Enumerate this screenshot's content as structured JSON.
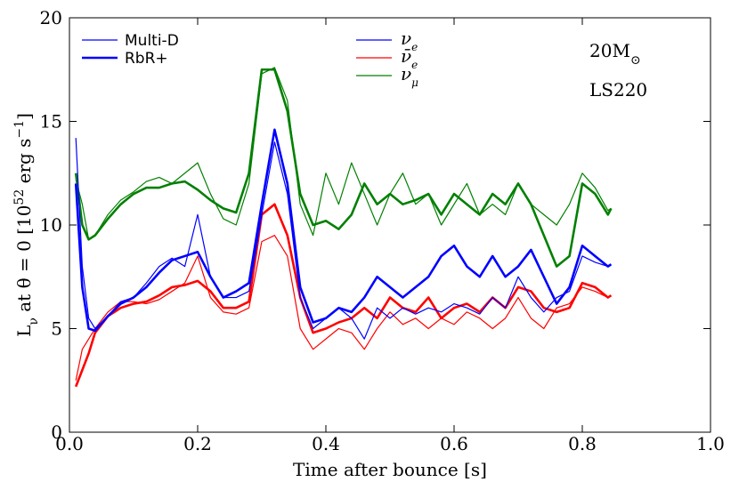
{
  "chart_data": {
    "type": "line",
    "xlabel": "Time after bounce [s]",
    "ylabel": [
      {
        "text": "L"
      },
      {
        "text": "ν",
        "sub": true
      },
      {
        "text": " at θ = 0 [10"
      },
      {
        "text": "52",
        "sup": true
      },
      {
        "text": " erg s"
      },
      {
        "text": "−1",
        "sup": true
      },
      {
        "text": "]"
      }
    ],
    "annotations": [
      [
        {
          "text": "20M"
        },
        {
          "text": "⊙",
          "sub": true
        }
      ],
      [
        {
          "text": "LS220"
        }
      ]
    ],
    "xlim": [
      0,
      1
    ],
    "ylim": [
      0,
      20
    ],
    "xticks": [
      {
        "value": 0,
        "label": "0.0"
      },
      0.2,
      0.4,
      0.6,
      0.8,
      {
        "value": 1,
        "label": "1.0"
      }
    ],
    "yticks": [
      0,
      5,
      10,
      15,
      20
    ],
    "legend_color": "#0000ff",
    "flavors": [
      {
        "name": "ν",
        "sub": "e",
        "color": "#0000ff"
      },
      {
        "name": "ν̄",
        "sub": "e",
        "color": "#ff0000"
      },
      {
        "name": "ν",
        "sub": "μ",
        "color": "#008000"
      }
    ],
    "x": [
      0.01,
      0.02,
      0.03,
      0.04,
      0.06,
      0.08,
      0.1,
      0.12,
      0.14,
      0.16,
      0.18,
      0.2,
      0.22,
      0.24,
      0.26,
      0.28,
      0.3,
      0.32,
      0.34,
      0.36,
      0.38,
      0.4,
      0.42,
      0.44,
      0.46,
      0.48,
      0.5,
      0.52,
      0.54,
      0.56,
      0.58,
      0.6,
      0.62,
      0.64,
      0.66,
      0.68,
      0.7,
      0.72,
      0.74,
      0.76,
      0.78,
      0.8,
      0.82,
      0.84,
      0.845
    ],
    "series": [
      {
        "name": "Multi-D",
        "color": "#008000",
        "linewidth": 1.2,
        "values": [
          12.2,
          11,
          9.3,
          9.5,
          10.5,
          11.2,
          11.6,
          12.1,
          12.3,
          12,
          12.5,
          13,
          11.5,
          10.3,
          10,
          12,
          17.3,
          17.6,
          16,
          11,
          9.5,
          12.5,
          11,
          13,
          11.5,
          10,
          11.5,
          12.5,
          11,
          11.5,
          10,
          11,
          12,
          10.5,
          11,
          10.5,
          12,
          11,
          10.5,
          10,
          11,
          12.5,
          11.8,
          10.7,
          10.8
        ]
      },
      {
        "name": "RbR+",
        "color": "#008000",
        "linewidth": 2.6,
        "values": [
          12.5,
          10,
          9.3,
          9.5,
          10.3,
          11,
          11.5,
          11.8,
          11.8,
          12,
          12.1,
          11.7,
          11.2,
          10.8,
          10.6,
          12.5,
          17.5,
          17.5,
          15.5,
          11.5,
          10,
          10.2,
          9.8,
          10.5,
          12,
          11,
          11.5,
          11,
          11.2,
          11.5,
          10.5,
          11.5,
          11,
          10.5,
          11.5,
          11,
          12,
          11,
          9.5,
          8,
          8.5,
          12,
          11.5,
          10.5,
          10.8
        ]
      },
      {
        "name": "Multi-D",
        "color": "#ff0000",
        "linewidth": 1.2,
        "values": [
          2.5,
          4,
          4.5,
          5,
          5.8,
          6.3,
          6.3,
          6.2,
          6.4,
          6.8,
          7.2,
          8.5,
          6.5,
          5.8,
          5.7,
          6,
          9.2,
          9.5,
          8.5,
          5,
          4,
          4.5,
          5,
          4.8,
          4,
          5,
          5.8,
          5.2,
          5.5,
          5,
          5.5,
          5.2,
          5.8,
          5.5,
          5,
          5.5,
          6.5,
          5.5,
          5,
          6,
          6.2,
          7,
          6.8,
          6.5,
          6.6
        ]
      },
      {
        "name": "RbR+",
        "color": "#ff0000",
        "linewidth": 2.6,
        "values": [
          2.2,
          3,
          3.8,
          4.8,
          5.6,
          6,
          6.2,
          6.3,
          6.6,
          7,
          7.1,
          7.3,
          6.8,
          6,
          6,
          6.3,
          10.5,
          11,
          9.5,
          6.5,
          4.8,
          5,
          5.3,
          5.5,
          6,
          5.5,
          6.5,
          6,
          5.8,
          6.5,
          5.5,
          6,
          6.2,
          5.8,
          6.5,
          6,
          7,
          6.8,
          6,
          5.8,
          6,
          7.2,
          7,
          6.5,
          6.6
        ]
      },
      {
        "name": "Multi-D",
        "color": "#0000ff",
        "linewidth": 1.2,
        "values": [
          14.2,
          8,
          5.5,
          5,
          5.6,
          6.3,
          6.5,
          7.2,
          8,
          8.4,
          8,
          10.5,
          7.5,
          6.5,
          6.5,
          6.8,
          10.5,
          14,
          11.5,
          6.5,
          5,
          5.5,
          6,
          5.5,
          4.5,
          6,
          5.5,
          6,
          5.7,
          6,
          5.8,
          6.2,
          6,
          5.7,
          6.5,
          6,
          7.5,
          6.5,
          5.8,
          6.5,
          6.8,
          8.5,
          8.2,
          8,
          8.1
        ]
      },
      {
        "name": "RbR+",
        "color": "#0000ff",
        "linewidth": 2.6,
        "values": [
          12,
          7,
          5,
          4.9,
          5.6,
          6.2,
          6.5,
          7,
          7.7,
          8.3,
          8.5,
          8.7,
          7.5,
          6.5,
          6.8,
          7.2,
          11,
          14.6,
          12,
          7,
          5.3,
          5.5,
          6,
          5.8,
          6.5,
          7.5,
          7,
          6.5,
          7,
          7.5,
          8.5,
          9,
          8,
          7.5,
          8.5,
          7.5,
          8,
          8.8,
          7.5,
          6.2,
          7,
          9,
          8.5,
          8,
          8.1
        ]
      }
    ]
  }
}
